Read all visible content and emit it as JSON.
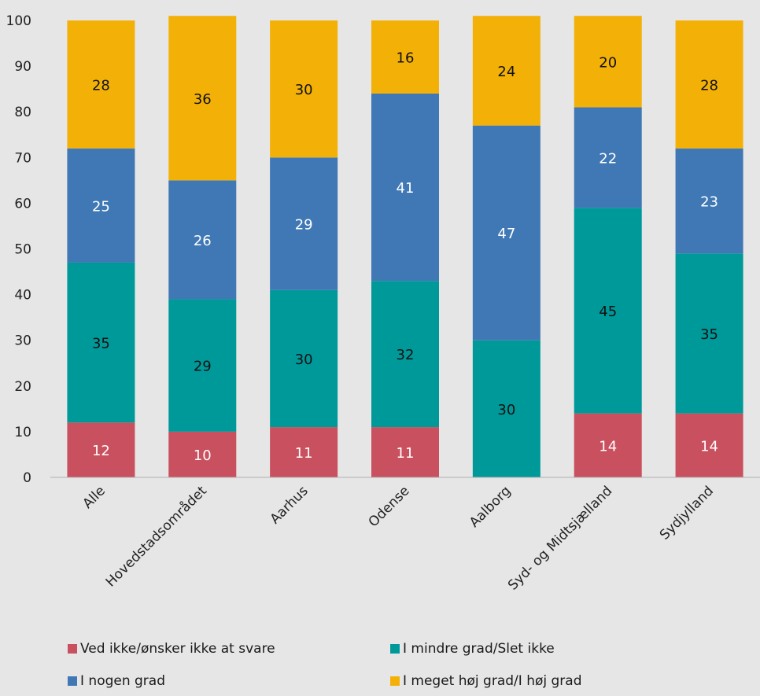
{
  "chart_data": {
    "type": "bar",
    "stacked": true,
    "categories": [
      "Alle",
      "Hovedstadsområdet",
      "Aarhus",
      "Odense",
      "Aalborg",
      "Syd- og Midtsjælland",
      "Sydjylland"
    ],
    "series": [
      {
        "name": "Ved ikke/ønsker ikke at svare",
        "color": "#c9505e",
        "values": [
          12,
          10,
          11,
          11,
          0,
          14,
          14
        ],
        "labels": [
          "12",
          "10",
          "11",
          "11",
          "",
          "14",
          "14"
        ],
        "label_color": "#ffffff"
      },
      {
        "name": "I mindre grad/Slet ikke",
        "color": "#00999a",
        "values": [
          35,
          29,
          30,
          32,
          30,
          45,
          35
        ],
        "labels": [
          "35",
          "29",
          "30",
          "32",
          "30",
          "45",
          "35"
        ],
        "label_color": "#111111"
      },
      {
        "name": "I nogen grad",
        "color": "#3f78b4",
        "values": [
          25,
          26,
          29,
          41,
          47,
          22,
          23
        ],
        "labels": [
          "25",
          "26",
          "29",
          "41",
          "47",
          "22",
          "23"
        ],
        "label_color": "#ffffff"
      },
      {
        "name": "I meget høj grad/I høj grad",
        "color": "#f3b108",
        "values": [
          28,
          36,
          30,
          16,
          24,
          20,
          28
        ],
        "labels": [
          "28",
          "36",
          "30",
          "16",
          "24",
          "20",
          "28"
        ],
        "label_color": "#111111"
      }
    ],
    "ylim": [
      0,
      100
    ],
    "yticks": [
      "0",
      "10",
      "20",
      "30",
      "40",
      "50",
      "60",
      "70",
      "80",
      "90",
      "100"
    ],
    "grid": false,
    "legend_position": "bottom"
  }
}
